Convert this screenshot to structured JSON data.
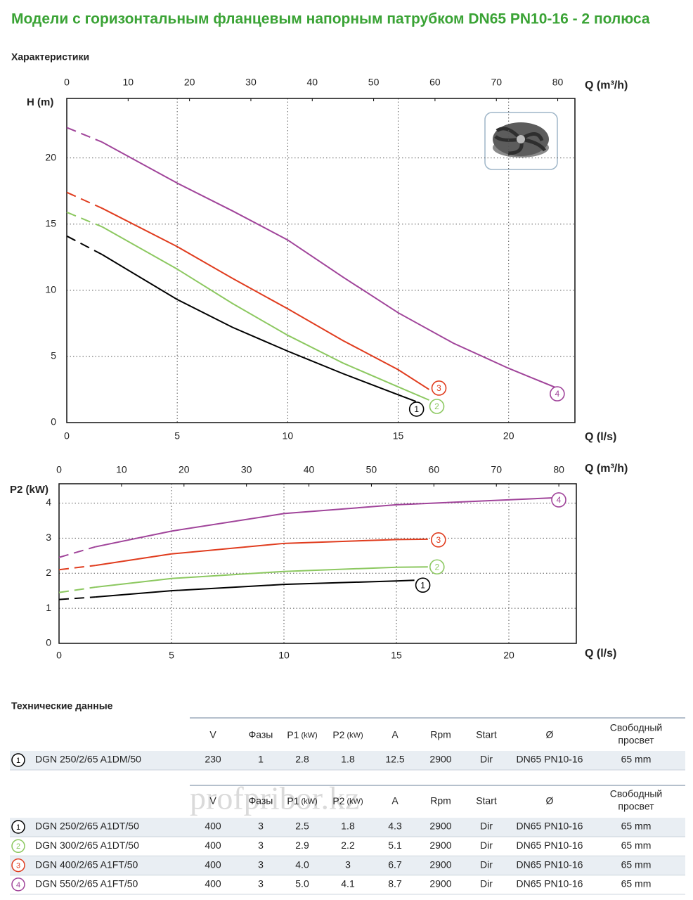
{
  "header": {
    "title": "Модели с горизонтальным фланцевым напорным патрубком DN65 PN10-16 - 2 полюса"
  },
  "sections": [
    "Характеристики",
    "Технические данные"
  ],
  "chart_data": [
    {
      "type": "line",
      "xlabel": "Q (l/s)",
      "ylabel": "H (m)",
      "x2label": "Q (m³/h)",
      "xlim": [
        0,
        23
      ],
      "ylim": [
        0,
        24.5
      ],
      "x2lim": [
        0,
        82.8
      ],
      "xticks": [
        0,
        5,
        10,
        15,
        20
      ],
      "yticks": [
        0,
        5,
        10,
        15,
        20
      ],
      "x2ticks": [
        0,
        10,
        20,
        30,
        40,
        50,
        60,
        70,
        80
      ],
      "grid": true,
      "series": [
        {
          "name": "1",
          "color": "#000000",
          "x": [
            0,
            1.6,
            5,
            7.5,
            10,
            12.5,
            15,
            15.8
          ],
          "values": [
            14.1,
            12.7,
            9.3,
            7.2,
            5.4,
            3.7,
            2.1,
            1.6
          ]
        },
        {
          "name": "2",
          "color": "#8cc860",
          "x": [
            0,
            1.6,
            5,
            7.5,
            10,
            12.5,
            15,
            16.4
          ],
          "values": [
            15.9,
            14.8,
            11.6,
            9.0,
            6.6,
            4.5,
            2.7,
            1.7
          ]
        },
        {
          "name": "3",
          "color": "#e03c1e",
          "x": [
            0,
            1.6,
            5,
            7.5,
            10,
            12.5,
            15,
            16.4
          ],
          "values": [
            17.4,
            16.2,
            13.3,
            10.9,
            8.6,
            6.2,
            4.0,
            2.5
          ]
        },
        {
          "name": "4",
          "color": "#a0449a",
          "x": [
            0,
            1.6,
            5,
            7.5,
            10,
            12.5,
            15,
            17.5,
            20,
            22.2
          ],
          "values": [
            22.3,
            21.2,
            18.1,
            16.0,
            13.8,
            11.0,
            8.3,
            6.0,
            4.1,
            2.6
          ]
        }
      ]
    },
    {
      "type": "line",
      "xlabel": "Q (l/s)",
      "ylabel": "P2 (kW)",
      "x2label": "Q (m³/h)",
      "xlim": [
        0,
        23
      ],
      "ylim": [
        0,
        4.55
      ],
      "x2lim": [
        0,
        82.8
      ],
      "xticks": [
        0,
        5,
        10,
        15,
        20
      ],
      "yticks": [
        0,
        1,
        2,
        3,
        4
      ],
      "x2ticks": [
        0,
        10,
        20,
        30,
        40,
        50,
        60,
        70,
        80
      ],
      "grid": true,
      "series": [
        {
          "name": "1",
          "color": "#000000",
          "x": [
            0,
            1.6,
            5,
            10,
            15,
            15.8
          ],
          "values": [
            1.25,
            1.32,
            1.5,
            1.68,
            1.78,
            1.8
          ]
        },
        {
          "name": "2",
          "color": "#8cc860",
          "x": [
            0,
            1.6,
            5,
            10,
            15,
            16.4
          ],
          "values": [
            1.45,
            1.6,
            1.85,
            2.05,
            2.17,
            2.18
          ]
        },
        {
          "name": "3",
          "color": "#e03c1e",
          "x": [
            0,
            1.6,
            5,
            10,
            15,
            16.4
          ],
          "values": [
            2.1,
            2.22,
            2.55,
            2.85,
            2.96,
            2.97
          ]
        },
        {
          "name": "4",
          "color": "#a0449a",
          "x": [
            0,
            1.6,
            5,
            10,
            15,
            22
          ],
          "values": [
            2.45,
            2.75,
            3.2,
            3.7,
            3.95,
            4.15
          ]
        }
      ]
    }
  ],
  "tables": [
    {
      "header": [
        "V",
        "Фазы",
        [
          "P1",
          "(kW)"
        ],
        [
          "P2",
          "(kW)"
        ],
        "A",
        "Rpm",
        "Start",
        "Ø",
        [
          "Свободный",
          "просвет"
        ]
      ],
      "rows": [
        [
          "1",
          "DGN 250/2/65 A1DM/50",
          "230",
          "1",
          "2.8",
          "1.8",
          "12.5",
          "2900",
          "Dir",
          "DN65 PN10-16",
          "65 mm"
        ]
      ]
    },
    {
      "header": [
        "V",
        "Фазы",
        [
          "P1",
          "(kW)"
        ],
        [
          "P2",
          "(kW)"
        ],
        "A",
        "Rpm",
        "Start",
        "Ø",
        [
          "Свободный",
          "просвет"
        ]
      ],
      "rows": [
        [
          "1",
          "DGN 250/2/65 A1DT/50",
          "400",
          "3",
          "2.5",
          "1.8",
          "4.3",
          "2900",
          "Dir",
          "DN65 PN10-16",
          "65 mm"
        ],
        [
          "2",
          "DGN 300/2/65 A1DT/50",
          "400",
          "3",
          "2.9",
          "2.2",
          "5.1",
          "2900",
          "Dir",
          "DN65 PN10-16",
          "65 mm"
        ],
        [
          "3",
          "DGN 400/2/65 A1FT/50",
          "400",
          "3",
          "4.0",
          "3",
          "6.7",
          "2900",
          "Dir",
          "DN65 PN10-16",
          "65 mm"
        ],
        [
          "4",
          "DGN 550/2/65 A1FT/50",
          "400",
          "3",
          "5.0",
          "4.1",
          "8.7",
          "2900",
          "Dir",
          "DN65 PN10-16",
          "65 mm"
        ]
      ]
    }
  ],
  "watermark": "profpribor.kz"
}
